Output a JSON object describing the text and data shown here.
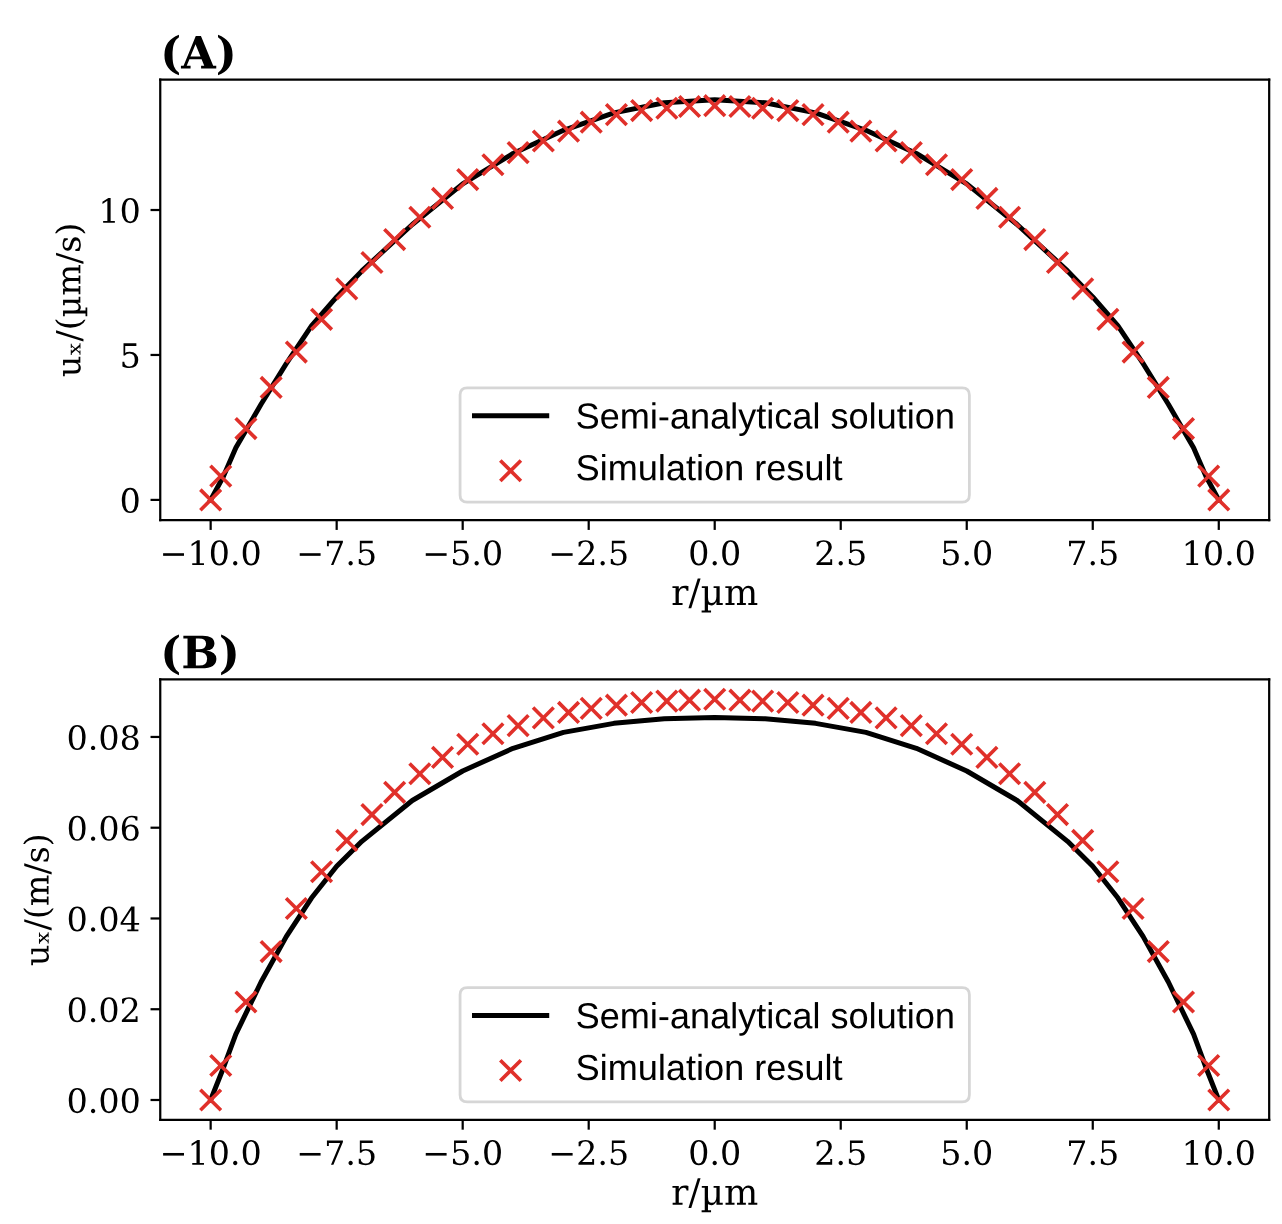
{
  "chart_data": [
    {
      "type": "line",
      "title": "(A)",
      "xlabel": "r/µm",
      "ylabel": "uₓ/(µm/s)",
      "xlim": [
        -11,
        11
      ],
      "xticks": [
        {
          "value": -10,
          "label": "−10.0"
        },
        {
          "value": -7.5,
          "label": "−7.5"
        },
        {
          "value": -5,
          "label": "−5.0"
        },
        {
          "value": -2.5,
          "label": "−2.5"
        },
        {
          "value": 0,
          "label": "0.0"
        },
        {
          "value": 2.5,
          "label": "2.5"
        },
        {
          "value": 5,
          "label": "5.0"
        },
        {
          "value": 7.5,
          "label": "7.5"
        },
        {
          "value": 10,
          "label": "10.0"
        }
      ],
      "ylim": [
        -0.7,
        14.5
      ],
      "yticks": [
        0,
        5,
        10
      ],
      "legend": "bottom",
      "grid": false,
      "series": [
        {
          "name": "Semi-analytical solution",
          "color": "#000000",
          "marker": "none",
          "line_style": "solid",
          "x": [
            -10,
            -9.75,
            -9.5,
            -9,
            -8.5,
            -8,
            -7.5,
            -7,
            -6,
            -5,
            -4,
            -3,
            -2,
            -1,
            0,
            1,
            2,
            3,
            4,
            5,
            6,
            7,
            7.5,
            8,
            8.5,
            9,
            9.5,
            9.75,
            10
          ],
          "values": [
            0,
            0.8,
            1.8,
            3.3,
            4.7,
            6.0,
            7.0,
            7.9,
            9.5,
            10.9,
            11.95,
            12.75,
            13.35,
            13.7,
            13.8,
            13.7,
            13.35,
            12.75,
            11.95,
            10.9,
            9.5,
            7.9,
            7.0,
            6.0,
            4.7,
            3.3,
            1.8,
            0.8,
            0
          ]
        },
        {
          "name": "Simulation result",
          "type": "scatter",
          "color": "#e0302a",
          "marker": "cross",
          "x": [
            -10,
            -9.8,
            -9.3,
            -8.8,
            -8.3,
            -7.8,
            -7.3,
            -6.8,
            -6.35,
            -5.85,
            -5.4,
            -4.9,
            -4.4,
            -3.9,
            -3.4,
            -2.9,
            -2.45,
            -1.95,
            -1.45,
            -0.95,
            -0.5,
            0,
            0.5,
            0.95,
            1.45,
            1.95,
            2.45,
            2.9,
            3.4,
            3.9,
            4.4,
            4.9,
            5.4,
            5.85,
            6.35,
            6.8,
            7.3,
            7.8,
            8.3,
            8.8,
            9.3,
            9.8,
            10
          ],
          "values": [
            0,
            0.82,
            2.46,
            3.88,
            5.1,
            6.23,
            7.28,
            8.19,
            8.98,
            9.75,
            10.4,
            11.05,
            11.56,
            11.98,
            12.38,
            12.72,
            13.03,
            13.29,
            13.43,
            13.51,
            13.57,
            13.6,
            13.57,
            13.51,
            13.43,
            13.29,
            13.03,
            12.72,
            12.38,
            11.98,
            11.56,
            11.05,
            10.4,
            9.75,
            8.98,
            8.19,
            7.28,
            6.23,
            5.1,
            3.88,
            2.46,
            0.82,
            0
          ]
        }
      ]
    },
    {
      "type": "line",
      "title": "(B)",
      "xlabel": "r/µm",
      "ylabel": "uₓ/(m/s)",
      "xlim": [
        -11,
        11
      ],
      "xticks": [
        {
          "value": -10,
          "label": "−10.0"
        },
        {
          "value": -7.5,
          "label": "−7.5"
        },
        {
          "value": -5,
          "label": "−5.0"
        },
        {
          "value": -2.5,
          "label": "−2.5"
        },
        {
          "value": 0,
          "label": "0.0"
        },
        {
          "value": 2.5,
          "label": "2.5"
        },
        {
          "value": 5,
          "label": "5.0"
        },
        {
          "value": 7.5,
          "label": "7.5"
        },
        {
          "value": 10,
          "label": "10.0"
        }
      ],
      "ylim": [
        -0.0044,
        0.0927
      ],
      "yticks": [
        {
          "value": 0,
          "label": "0.00"
        },
        {
          "value": 0.02,
          "label": "0.02"
        },
        {
          "value": 0.04,
          "label": "0.04"
        },
        {
          "value": 0.06,
          "label": "0.06"
        },
        {
          "value": 0.08,
          "label": "0.08"
        }
      ],
      "legend": "bottom",
      "grid": false,
      "series": [
        {
          "name": "Semi-analytical solution",
          "color": "#000000",
          "marker": "none",
          "line_style": "solid",
          "x": [
            -10,
            -9.75,
            -9.5,
            -9,
            -8.5,
            -8,
            -7.5,
            -7,
            -6,
            -5,
            -4,
            -3,
            -2,
            -1,
            0,
            1,
            2,
            3,
            4,
            5,
            6,
            7,
            7.5,
            8,
            8.5,
            9,
            9.5,
            9.75,
            10
          ],
          "values": [
            0,
            0.007,
            0.0145,
            0.026,
            0.036,
            0.0445,
            0.0515,
            0.057,
            0.066,
            0.0725,
            0.0775,
            0.081,
            0.083,
            0.084,
            0.0843,
            0.084,
            0.083,
            0.081,
            0.0775,
            0.0725,
            0.066,
            0.057,
            0.0515,
            0.0445,
            0.036,
            0.026,
            0.0145,
            0.007,
            0
          ]
        },
        {
          "name": "Simulation result",
          "type": "scatter",
          "color": "#e0302a",
          "marker": "cross",
          "x": [
            -10,
            -9.8,
            -9.3,
            -8.8,
            -8.3,
            -7.8,
            -7.3,
            -6.8,
            -6.35,
            -5.85,
            -5.4,
            -4.9,
            -4.4,
            -3.9,
            -3.4,
            -2.9,
            -2.45,
            -1.95,
            -1.45,
            -0.95,
            -0.5,
            0,
            0.5,
            0.95,
            1.45,
            1.95,
            2.45,
            2.9,
            3.4,
            3.9,
            4.4,
            4.9,
            5.4,
            5.85,
            6.35,
            6.8,
            7.3,
            7.8,
            8.3,
            8.8,
            9.3,
            9.8,
            10
          ],
          "values": [
            0,
            0.0076,
            0.0216,
            0.0327,
            0.0422,
            0.0503,
            0.0572,
            0.0629,
            0.0678,
            0.0719,
            0.0755,
            0.0784,
            0.0807,
            0.0825,
            0.0842,
            0.0854,
            0.0863,
            0.087,
            0.0876,
            0.0879,
            0.0881,
            0.0883,
            0.0881,
            0.0879,
            0.0876,
            0.087,
            0.0863,
            0.0854,
            0.0842,
            0.0825,
            0.0807,
            0.0784,
            0.0755,
            0.0719,
            0.0678,
            0.0629,
            0.0572,
            0.0503,
            0.0422,
            0.0327,
            0.0216,
            0.0076,
            0
          ]
        }
      ]
    }
  ]
}
